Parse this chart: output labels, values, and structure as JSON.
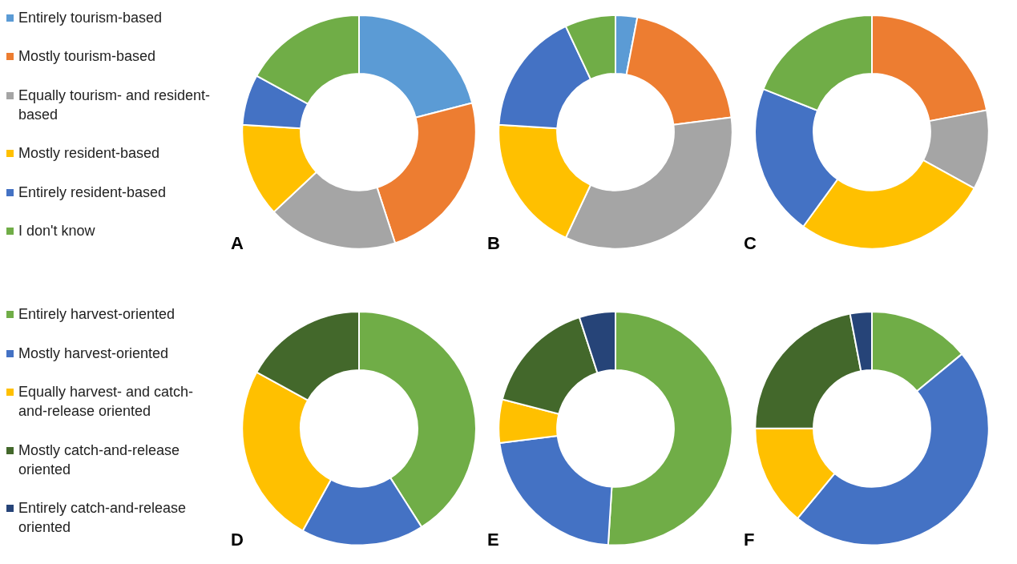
{
  "chart_data": [
    {
      "type": "donut",
      "legend": "left",
      "categories": [
        "Entirely tourism-based",
        "Mostly tourism-based",
        "Equally tourism- and resident-based",
        "Mostly resident-based",
        "Entirely resident-based",
        "I don't know"
      ],
      "colors": [
        "#5b9bd5",
        "#ed7d31",
        "#a5a5a5",
        "#ffc000",
        "#4472c4",
        "#70ad47"
      ],
      "series": [
        {
          "name": "A",
          "values": [
            21,
            24,
            18,
            13,
            7,
            17
          ]
        },
        {
          "name": "B",
          "values": [
            3,
            20,
            34,
            19,
            17,
            7
          ]
        },
        {
          "name": "C",
          "values": [
            0,
            22,
            11,
            27,
            21,
            19
          ]
        }
      ]
    },
    {
      "type": "donut",
      "legend": "left",
      "categories": [
        "Entirely harvest-oriented",
        "Mostly harvest-oriented",
        "Equally harvest- and catch-and-release oriented",
        "Mostly catch-and-release oriented",
        "Entirely catch-and-release oriented"
      ],
      "colors": [
        "#70ad47",
        "#4472c4",
        "#ffc000",
        "#43682b",
        "#264478"
      ],
      "series": [
        {
          "name": "D",
          "values": [
            41,
            17,
            25,
            17,
            0
          ]
        },
        {
          "name": "E",
          "values": [
            51,
            22,
            6,
            16,
            5
          ]
        },
        {
          "name": "F",
          "values": [
            14,
            47,
            14,
            22,
            3
          ]
        }
      ]
    }
  ]
}
